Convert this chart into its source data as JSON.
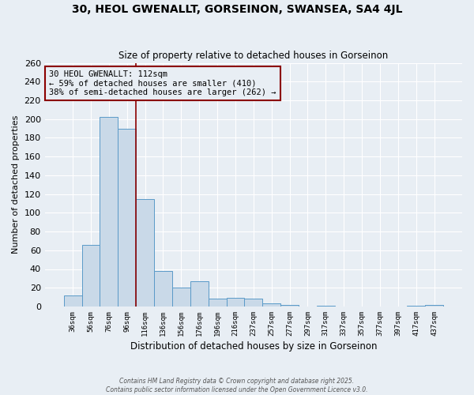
{
  "title": "30, HEOL GWENALLT, GORSEINON, SWANSEA, SA4 4JL",
  "subtitle": "Size of property relative to detached houses in Gorseinon",
  "xlabel": "Distribution of detached houses by size in Gorseinon",
  "ylabel": "Number of detached properties",
  "categories": [
    "36sqm",
    "56sqm",
    "76sqm",
    "96sqm",
    "116sqm",
    "136sqm",
    "156sqm",
    "176sqm",
    "196sqm",
    "216sqm",
    "237sqm",
    "257sqm",
    "277sqm",
    "297sqm",
    "317sqm",
    "337sqm",
    "357sqm",
    "377sqm",
    "397sqm",
    "417sqm",
    "437sqm"
  ],
  "values": [
    12,
    66,
    202,
    190,
    115,
    38,
    20,
    27,
    8,
    9,
    8,
    3,
    2,
    0,
    1,
    0,
    0,
    0,
    0,
    1,
    2
  ],
  "bar_color": "#c9d9e8",
  "bar_edge_color": "#5a9ac8",
  "background_color": "#e8eef4",
  "grid_color": "#ffffff",
  "annotation_box_text": "30 HEOL GWENALLT: 112sqm\n← 59% of detached houses are smaller (410)\n38% of semi-detached houses are larger (262) →",
  "footer_line1": "Contains HM Land Registry data © Crown copyright and database right 2025.",
  "footer_line2": "Contains public sector information licensed under the Open Government Licence v3.0.",
  "ylim": [
    0,
    260
  ],
  "yticks": [
    0,
    20,
    40,
    60,
    80,
    100,
    120,
    140,
    160,
    180,
    200,
    220,
    240,
    260
  ],
  "red_line_x": 3.5
}
